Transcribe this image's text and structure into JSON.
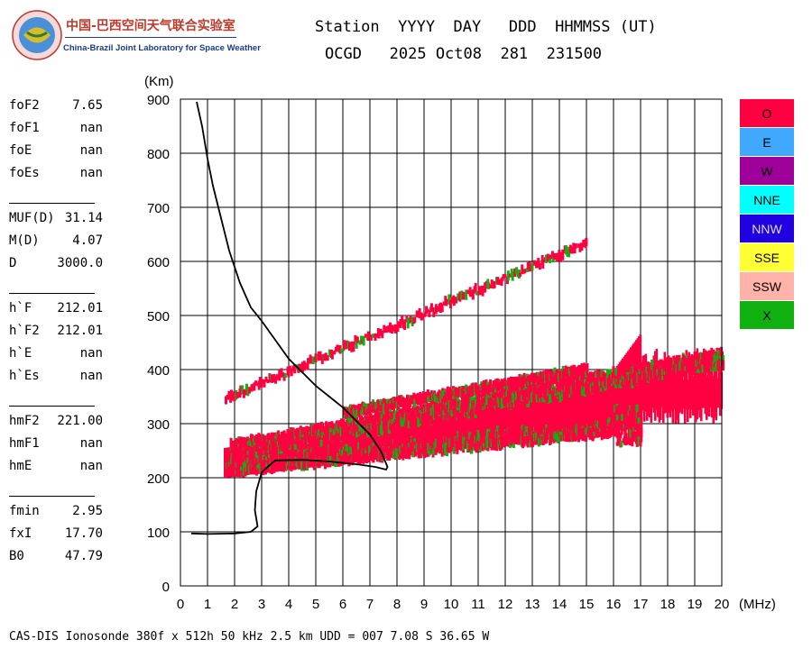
{
  "header": {
    "logo_cn": "中国-巴西空间天气联合实验室",
    "logo_en": "China-Brazil Joint Laboratory for Space Weather",
    "line1": "Station  YYYY  DAY   DDD  HHMMSS (UT)",
    "line2": "OCGD   2025 Oct08  281  231500"
  },
  "params": [
    {
      "label": "foF2",
      "value": "7.65"
    },
    {
      "label": "foF1",
      "value": "nan"
    },
    {
      "label": "foE",
      "value": "nan"
    },
    {
      "label": "foEs",
      "value": "nan"
    },
    {
      "label": "MUF(D)",
      "value": "31.14"
    },
    {
      "label": "M(D)",
      "value": "4.07"
    },
    {
      "label": "D",
      "value": "3000.0"
    },
    {
      "label": "h`F",
      "value": "212.01"
    },
    {
      "label": "h`F2",
      "value": "212.01"
    },
    {
      "label": "h`E",
      "value": "nan"
    },
    {
      "label": "h`Es",
      "value": "nan"
    },
    {
      "label": "hmF2",
      "value": "221.00"
    },
    {
      "label": "hmF1",
      "value": "nan"
    },
    {
      "label": "hmE",
      "value": "nan"
    },
    {
      "label": "fmin",
      "value": "2.95"
    },
    {
      "label": "fxI",
      "value": "17.70"
    },
    {
      "label": "B0",
      "value": "47.79"
    }
  ],
  "legend": [
    {
      "label": "O",
      "color": "#ff0040"
    },
    {
      "label": "E",
      "color": "#3fa9ff"
    },
    {
      "label": "W",
      "color": "#a0009a"
    },
    {
      "label": "NNE",
      "color": "#00ffff"
    },
    {
      "label": "NNW",
      "color": "#2000e0"
    },
    {
      "label": "SSE",
      "color": "#ffff33"
    },
    {
      "label": "SSW",
      "color": "#ffb3a8"
    },
    {
      "label": "X",
      "color": "#11b011"
    }
  ],
  "footer": "CAS-DIS Ionosonde 380f x 512h 50 kHz 2.5 km UDD = 007 7.08 S 36.65 W",
  "chart_data": {
    "type": "scatter",
    "xlabel": "(MHz)",
    "ylabel": "(Km)",
    "xlim": [
      0,
      20
    ],
    "ylim": [
      0,
      900
    ],
    "x_ticks": [
      0,
      1,
      2,
      3,
      4,
      5,
      6,
      7,
      8,
      9,
      10,
      11,
      12,
      13,
      14,
      15,
      16,
      17,
      18,
      19,
      20
    ],
    "y_ticks": [
      0,
      100,
      200,
      300,
      400,
      500,
      600,
      700,
      800,
      900
    ],
    "grid": true,
    "legend_position": "right",
    "profile_curve": {
      "x": [
        0.6,
        0.8,
        1.0,
        1.2,
        1.5,
        1.8,
        2.2,
        2.6,
        3.0,
        3.5,
        4.0,
        4.5,
        5.0,
        5.5,
        6.0,
        6.5,
        7.0,
        7.4,
        7.65,
        7.6,
        7.2,
        6.5,
        5.5,
        4.5,
        3.5,
        3.0,
        2.8,
        2.75,
        2.85,
        2.6,
        2.0,
        1.0,
        0.4
      ],
      "y": [
        895,
        850,
        790,
        740,
        680,
        620,
        560,
        515,
        490,
        455,
        420,
        395,
        370,
        350,
        330,
        305,
        280,
        250,
        220,
        215,
        220,
        225,
        230,
        233,
        232,
        210,
        175,
        140,
        110,
        100,
        97,
        96,
        97
      ]
    },
    "echo_traces": [
      {
        "mode": "O",
        "x_start": 1.6,
        "x_end": 15.0,
        "y_start": 345,
        "y_end": 635
      },
      {
        "mode": "O",
        "x_start": 1.6,
        "x_end": 17.0,
        "y_start": 220,
        "y_end": 300
      },
      {
        "mode": "O",
        "x_start": 1.8,
        "x_end": 20.0,
        "y_start": 250,
        "y_end": 420
      },
      {
        "mode": "O",
        "x_start": 6.0,
        "x_end": 15.0,
        "y_start": 320,
        "y_end": 400
      }
    ]
  }
}
